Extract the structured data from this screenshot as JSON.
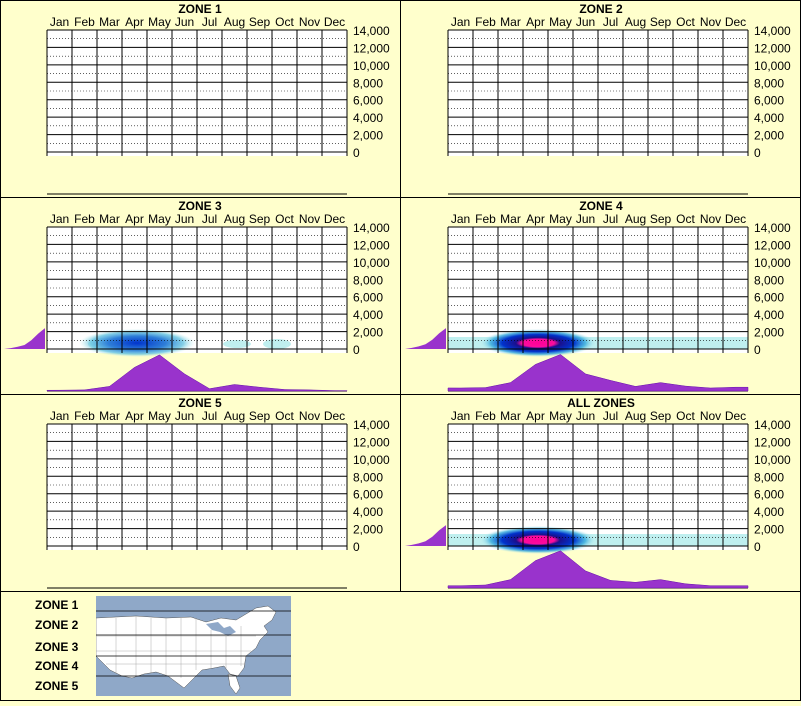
{
  "months": [
    "Jan",
    "Feb",
    "Mar",
    "Apr",
    "May",
    "Jun",
    "Jul",
    "Aug",
    "Sep",
    "Oct",
    "Nov",
    "Dec"
  ],
  "y_tick_labels": [
    "14,000",
    "12,000",
    "10,000",
    "8,000",
    "6,000",
    "4,000",
    "2,000",
    "0"
  ],
  "legend": {
    "labels": [
      "ZONE 1",
      "ZONE 2",
      "ZONE 3",
      "ZONE 4",
      "ZONE 5"
    ]
  },
  "colors": {
    "background": "#ffffcc",
    "grid": "#000000",
    "profile_fill": "#9933cc",
    "heat_low": "#bfefef",
    "heat_mid": "#0033cc",
    "heat_high": "#ff0099",
    "map_water": "#8fa8c8",
    "map_land": "#ffffff"
  },
  "chart_data": [
    {
      "type": "heatmap",
      "title": "ZONE 1",
      "x_categories": [
        "Jan",
        "Feb",
        "Mar",
        "Apr",
        "May",
        "Jun",
        "Jul",
        "Aug",
        "Sep",
        "Oct",
        "Nov",
        "Dec"
      ],
      "ylim": [
        0,
        14000
      ],
      "has_data": false
    },
    {
      "type": "heatmap",
      "title": "ZONE 2",
      "x_categories": [
        "Jan",
        "Feb",
        "Mar",
        "Apr",
        "May",
        "Jun",
        "Jul",
        "Aug",
        "Sep",
        "Oct",
        "Nov",
        "Dec"
      ],
      "ylim": [
        0,
        14000
      ],
      "has_data": false
    },
    {
      "type": "heatmap",
      "title": "ZONE 3",
      "x_categories": [
        "Jan",
        "Feb",
        "Mar",
        "Apr",
        "May",
        "Jun",
        "Jul",
        "Aug",
        "Sep",
        "Oct",
        "Nov",
        "Dec"
      ],
      "ylim": [
        0,
        14000
      ],
      "has_data": true,
      "monthly_profile": [
        0.02,
        0.03,
        0.12,
        0.62,
        0.95,
        0.45,
        0.06,
        0.17,
        0.1,
        0.04,
        0.03,
        0.01
      ],
      "elevation_profile": [
        0.0,
        0.04,
        0.1,
        0.18,
        0.4,
        0.7,
        0.95
      ]
    },
    {
      "type": "heatmap",
      "title": "ZONE 4",
      "x_categories": [
        "Jan",
        "Feb",
        "Mar",
        "Apr",
        "May",
        "Jun",
        "Jul",
        "Aug",
        "Sep",
        "Oct",
        "Nov",
        "Dec"
      ],
      "ylim": [
        0,
        14000
      ],
      "has_data": true,
      "monthly_profile": [
        0.08,
        0.09,
        0.22,
        0.7,
        0.96,
        0.45,
        0.28,
        0.12,
        0.22,
        0.13,
        0.08,
        0.1
      ],
      "elevation_profile": [
        0.0,
        0.05,
        0.12,
        0.22,
        0.42,
        0.72,
        0.95
      ]
    },
    {
      "type": "heatmap",
      "title": "ZONE 5",
      "x_categories": [
        "Jan",
        "Feb",
        "Mar",
        "Apr",
        "May",
        "Jun",
        "Jul",
        "Aug",
        "Sep",
        "Oct",
        "Nov",
        "Dec"
      ],
      "ylim": [
        0,
        14000
      ],
      "has_data": false
    },
    {
      "type": "heatmap",
      "title": "ALL ZONES",
      "x_categories": [
        "Jan",
        "Feb",
        "Mar",
        "Apr",
        "May",
        "Jun",
        "Jul",
        "Aug",
        "Sep",
        "Oct",
        "Nov",
        "Dec"
      ],
      "ylim": [
        0,
        14000
      ],
      "has_data": true,
      "monthly_profile": [
        0.06,
        0.08,
        0.22,
        0.72,
        0.98,
        0.45,
        0.2,
        0.15,
        0.22,
        0.11,
        0.06,
        0.06
      ],
      "elevation_profile": [
        0.0,
        0.05,
        0.12,
        0.22,
        0.42,
        0.72,
        0.95
      ]
    }
  ]
}
